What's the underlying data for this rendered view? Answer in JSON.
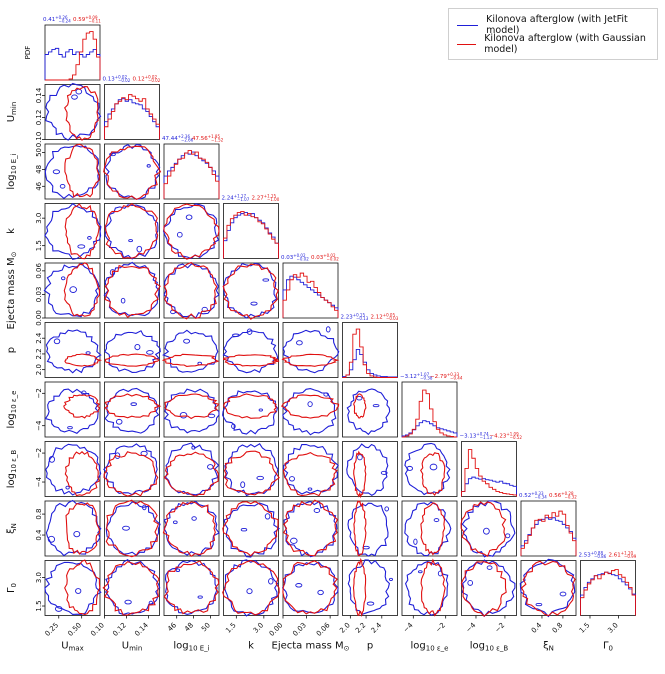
{
  "chart_data": {
    "type": "corner",
    "parameters": [
      "U_max",
      "U_min",
      "log10 E_i",
      "k",
      "Ejecta mass M⊙",
      "p",
      "log10 ε_e",
      "log10 ε_B",
      "ξ_N",
      "Γ_0"
    ],
    "axis_labels": [
      "U",
      "U",
      "log",
      "k",
      "Ejecta mass M",
      "p",
      "log",
      "log",
      "ξ",
      "Γ"
    ],
    "axis_subscripts": [
      "max",
      "min",
      "10 E_i",
      "",
      "⊙",
      "",
      "10 ε_e",
      "10 ε_B",
      "N",
      "0"
    ],
    "ranges": [
      [
        0.1,
        0.7
      ],
      [
        0.1,
        0.15
      ],
      [
        44.5,
        51
      ],
      [
        0.8,
        3.8
      ],
      [
        0,
        0.07
      ],
      [
        1.9,
        2.6
      ],
      [
        -4.7,
        -1.3
      ],
      [
        -5,
        -1.2
      ],
      [
        0,
        1.05
      ],
      [
        1,
        3.9
      ]
    ],
    "ticks": [
      [
        0.25,
        0.5
      ],
      [
        0.1,
        0.12,
        0.14
      ],
      [
        46,
        48,
        50
      ],
      [
        1.5,
        3.0
      ],
      [
        0.0,
        0.03,
        0.06
      ],
      [
        2.0,
        2.2,
        2.4
      ],
      [
        -4,
        -2
      ],
      [
        -4,
        -2
      ],
      [
        0.4,
        0.8
      ],
      [
        1.5,
        3.0
      ]
    ],
    "tick_labels": [
      [
        "0.25",
        "0.50"
      ],
      [
        "0.10",
        "0.12",
        "0.14"
      ],
      [
        "46",
        "48",
        "50"
      ],
      [
        "1.5",
        "3.0"
      ],
      [
        "0.00",
        "0.03",
        "0.06"
      ],
      [
        "2.0",
        "2.2",
        "2.4"
      ],
      [
        "−4",
        "−2"
      ],
      [
        "−4",
        "−2"
      ],
      [
        "0.4",
        "0.8"
      ],
      [
        "1.5",
        "3.0"
      ]
    ],
    "y_tick_labels_row0": [
      "PDF"
    ],
    "series": [
      {
        "name": "Kilonova afterglow (with JetFit model)",
        "color": "#1f1fd8",
        "medians": [
          0.41,
          0.13,
          47.44,
          2.24,
          0.03,
          2.23,
          -3.12,
          -3.13,
          0.52,
          2.53
        ],
        "titles": [
          "0.41 +0.26 −0.24",
          "0.13 +0.02 −0.02",
          "47.44 +2.36 −2.66",
          "2.24 +1.17 −1.07",
          "0.03 +0.02 −0.02",
          "2.23 +0.15 −0.13",
          "−3.12 +1.07 −0.38",
          "−3.13 +0.74 −1.13",
          "0.52 +0.33 −0.34",
          "2.53 +0.88 −0.86"
        ],
        "title_main": [
          "0.41",
          "0.13",
          "47.44",
          "2.24",
          "0.03",
          "2.23",
          "−3.12",
          "−3.13",
          "0.52",
          "2.53"
        ],
        "title_up": [
          "+0.26",
          "+0.02",
          "+2.36",
          "+1.17",
          "+0.02",
          "+0.15",
          "+1.07",
          "+0.74",
          "+0.33",
          "+0.88"
        ],
        "title_dn": [
          "−0.24",
          "−0.02",
          "−2.66",
          "−1.07",
          "−0.02",
          "−0.13",
          "−0.38",
          "−1.13",
          "−0.34",
          "−0.86"
        ],
        "histograms": [
          [
            0.5,
            0.55,
            0.6,
            0.62,
            0.5,
            0.45,
            0.55,
            0.6,
            0.5,
            0.55,
            0.5,
            0.45,
            0.5,
            0.55,
            0.6,
            0.5
          ],
          [
            0.35,
            0.5,
            0.6,
            0.7,
            0.78,
            0.8,
            0.75,
            0.78,
            0.72,
            0.7,
            0.68,
            0.6,
            0.55,
            0.45,
            0.35,
            0.25
          ],
          [
            0.45,
            0.55,
            0.62,
            0.7,
            0.78,
            0.85,
            0.9,
            0.88,
            0.92,
            0.85,
            0.8,
            0.75,
            0.7,
            0.62,
            0.55,
            0.45
          ],
          [
            0.35,
            0.55,
            0.7,
            0.8,
            0.85,
            0.88,
            0.9,
            0.85,
            0.88,
            0.8,
            0.75,
            0.7,
            0.6,
            0.5,
            0.42,
            0.3
          ],
          [
            0.55,
            0.75,
            0.82,
            0.8,
            0.75,
            0.7,
            0.65,
            0.6,
            0.55,
            0.5,
            0.45,
            0.4,
            0.35,
            0.3,
            0.25,
            0.2
          ],
          [
            0.02,
            0.05,
            0.15,
            0.35,
            0.55,
            0.45,
            0.3,
            0.15,
            0.08,
            0.05,
            0.03,
            0.02,
            0.02,
            0.01,
            0.01,
            0.01
          ],
          [
            0.02,
            0.04,
            0.08,
            0.14,
            0.22,
            0.28,
            0.32,
            0.3,
            0.26,
            0.22,
            0.18,
            0.16,
            0.14,
            0.12,
            0.1,
            0.08
          ],
          [
            0.1,
            0.25,
            0.35,
            0.38,
            0.36,
            0.34,
            0.35,
            0.33,
            0.32,
            0.3,
            0.28,
            0.3,
            0.26,
            0.25,
            0.22,
            0.2
          ],
          [
            0.2,
            0.3,
            0.42,
            0.55,
            0.62,
            0.7,
            0.72,
            0.75,
            0.72,
            0.75,
            0.7,
            0.68,
            0.62,
            0.55,
            0.48,
            0.35
          ],
          [
            0.4,
            0.55,
            0.65,
            0.72,
            0.78,
            0.8,
            0.82,
            0.85,
            0.83,
            0.8,
            0.78,
            0.72,
            0.66,
            0.6,
            0.52,
            0.42
          ]
        ]
      },
      {
        "name": "Kilonova afterglow (with Gaussian model)",
        "color": "#e01010",
        "medians": [
          0.59,
          0.12,
          47.56,
          2.27,
          0.03,
          2.12,
          -2.79,
          -4.23,
          0.56,
          2.61
        ],
        "titles": [
          "0.59 +0.09 −0.11",
          "0.12 +0.02 −0.02",
          "47.56 +1.85 −1.52",
          "2.27 +1.15 −1.00",
          "0.03 +0.02 −0.02",
          "2.12 +0.05 −0.03",
          "−2.79 +0.33 −0.44",
          "−4.23 +1.09 −0.52",
          "0.56 +0.28 −0.32",
          "2.61 +1.10 −0.99"
        ],
        "title_main": [
          "0.59",
          "0.12",
          "47.56",
          "2.27",
          "0.03",
          "2.12",
          "−2.79",
          "−4.23",
          "0.56",
          "2.61"
        ],
        "title_up": [
          "+0.09",
          "+0.02",
          "+1.85",
          "+1.15",
          "+0.02",
          "+0.05",
          "+0.33",
          "+1.09",
          "+0.28",
          "+1.10"
        ],
        "title_dn": [
          "−0.11",
          "−0.02",
          "−1.52",
          "−1.00",
          "−0.02",
          "−0.03",
          "−0.44",
          "−0.52",
          "−0.32",
          "−0.99"
        ],
        "histograms": [
          [
            0.0,
            0.0,
            0.0,
            0.0,
            0.0,
            0.0,
            0.0,
            0.02,
            0.1,
            0.3,
            0.55,
            0.8,
            0.92,
            0.95,
            0.8,
            0.45
          ],
          [
            0.25,
            0.4,
            0.55,
            0.7,
            0.75,
            0.82,
            0.78,
            0.88,
            0.85,
            0.8,
            0.75,
            0.8,
            0.6,
            0.5,
            0.4,
            0.3
          ],
          [
            0.3,
            0.45,
            0.55,
            0.68,
            0.78,
            0.8,
            0.9,
            0.95,
            0.88,
            0.92,
            0.8,
            0.78,
            0.72,
            0.62,
            0.48,
            0.35
          ],
          [
            0.4,
            0.65,
            0.78,
            0.85,
            0.9,
            0.92,
            0.85,
            0.88,
            0.82,
            0.8,
            0.72,
            0.68,
            0.58,
            0.48,
            0.38,
            0.3
          ],
          [
            0.35,
            0.55,
            0.75,
            0.85,
            0.8,
            0.88,
            0.82,
            0.7,
            0.72,
            0.6,
            0.5,
            0.4,
            0.35,
            0.3,
            0.22,
            0.15
          ],
          [
            0.0,
            0.05,
            0.3,
            0.85,
            0.95,
            0.6,
            0.25,
            0.08,
            0.03,
            0.01,
            0.0,
            0.0,
            0.0,
            0.0,
            0.0,
            0.0
          ],
          [
            0.0,
            0.02,
            0.06,
            0.15,
            0.35,
            0.7,
            0.92,
            0.85,
            0.55,
            0.3,
            0.15,
            0.08,
            0.04,
            0.02,
            0.01,
            0.0
          ],
          [
            0.1,
            0.55,
            0.92,
            0.75,
            0.55,
            0.4,
            0.3,
            0.25,
            0.18,
            0.14,
            0.1,
            0.08,
            0.06,
            0.05,
            0.04,
            0.03
          ],
          [
            0.15,
            0.25,
            0.4,
            0.55,
            0.7,
            0.72,
            0.68,
            0.8,
            0.75,
            0.85,
            0.78,
            0.88,
            0.82,
            0.6,
            0.45,
            0.3
          ],
          [
            0.35,
            0.5,
            0.62,
            0.7,
            0.78,
            0.72,
            0.8,
            0.85,
            0.82,
            0.88,
            0.9,
            0.8,
            0.75,
            0.65,
            0.55,
            0.4
          ]
        ]
      }
    ],
    "legend_position": "top-right",
    "grid": false
  }
}
